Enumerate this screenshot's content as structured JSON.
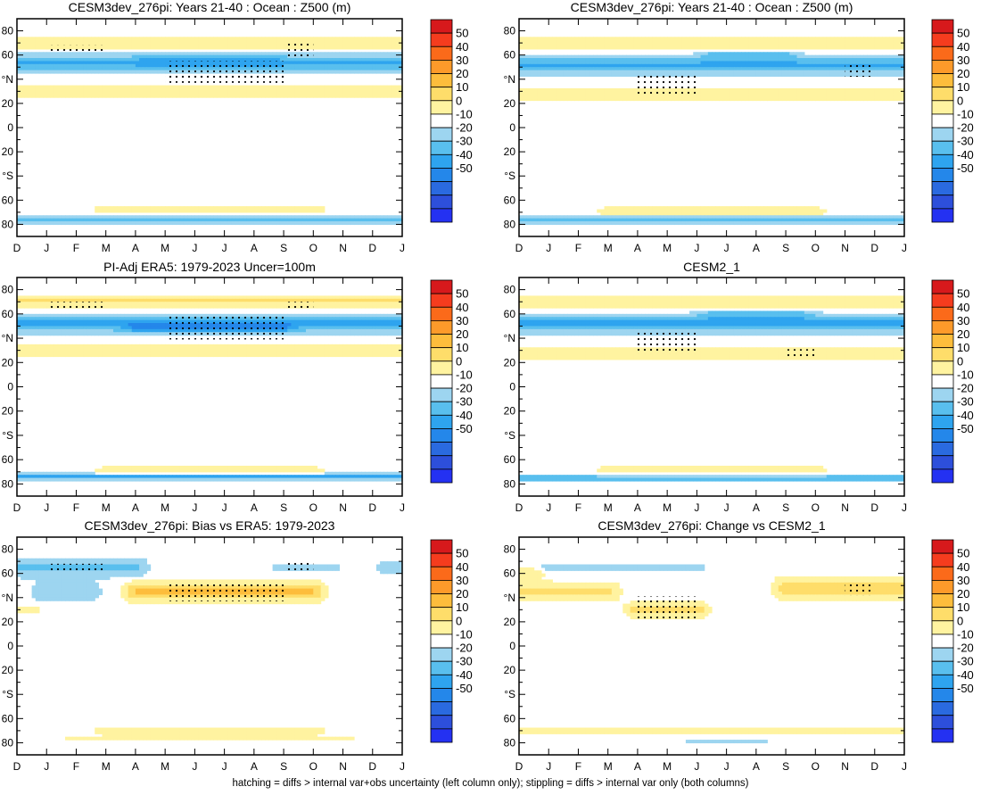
{
  "figure": {
    "caption": "hatching = diffs > internal var+obs uncertainty (left column only); stippling = diffs > internal var only (both columns)"
  },
  "palette": {
    "levels": [
      "50",
      "40",
      "30",
      "20",
      "10",
      "0",
      "-10",
      "-20",
      "-30",
      "-40",
      "-50"
    ],
    "colors": [
      "#d7191c",
      "#f53c1e",
      "#fb6a1a",
      "#fd9a2a",
      "#fdbd3c",
      "#fedd6a",
      "#fff3a0",
      "#ffffff",
      "#9dd5f0",
      "#59bfee",
      "#2ea4ef",
      "#2487ea",
      "#2a6ae0",
      "#2d4fdb",
      "#2431f2"
    ]
  },
  "chart_data": [
    {
      "type": "heatmap",
      "title": "CESM3dev_276pi: Years 21-40 : Ocean : Z500 (m)",
      "xticklabels": [
        "D",
        "J",
        "F",
        "M",
        "A",
        "M",
        "J",
        "J",
        "A",
        "S",
        "O",
        "N",
        "D",
        "J"
      ],
      "yticklabels": [
        "80",
        "60",
        "°N",
        "20",
        "0",
        "20",
        "°S",
        "60",
        "80"
      ],
      "xlim": [
        0,
        13
      ],
      "ylim": [
        -90,
        90
      ],
      "colorbar": [
        "50",
        "40",
        "30",
        "20",
        "10",
        "0",
        "-10",
        "-20",
        "-30",
        "-40",
        "-50"
      ],
      "features": [
        {
          "lat": 70,
          "x0": 0,
          "x1": 13,
          "width": 5,
          "amp": 12
        },
        {
          "lat": 53,
          "x0": 0,
          "x1": 13,
          "width": 7,
          "amp": -26
        },
        {
          "lat": 58,
          "x0": 4.5,
          "x1": 8.5,
          "width": 5,
          "amp": -12
        },
        {
          "lat": 30,
          "x0": 0,
          "x1": 13,
          "width": 5,
          "amp": 14
        },
        {
          "lat": -68,
          "x0": 3,
          "x1": 10,
          "width": 3,
          "amp": 14
        },
        {
          "lat": -76,
          "x0": 0,
          "x1": 13,
          "width": 2.5,
          "amp": -18
        }
      ],
      "stipple": [
        {
          "x0": 1,
          "x1": 3,
          "lat0": 65,
          "lat1": 65
        },
        {
          "x0": 5,
          "x1": 9,
          "lat0": 40,
          "lat1": 52
        },
        {
          "x0": 9,
          "x1": 10,
          "lat0": 62,
          "lat1": 68
        }
      ]
    },
    {
      "type": "heatmap",
      "title": "CESM3dev_276pi: Years 21-40 : Ocean : Z500 (m)",
      "xticklabels": [
        "D",
        "J",
        "F",
        "M",
        "A",
        "M",
        "J",
        "J",
        "A",
        "S",
        "O",
        "N",
        "D",
        "J"
      ],
      "yticklabels": [
        "80",
        "60",
        "°N",
        "20",
        "0",
        "20",
        "°S",
        "60",
        "80"
      ],
      "xlim": [
        0,
        13
      ],
      "ylim": [
        -90,
        90
      ],
      "colorbar": [
        "50",
        "40",
        "30",
        "20",
        "10",
        "0",
        "-10",
        "-20",
        "-30",
        "-40",
        "-50"
      ],
      "features": [
        {
          "lat": 70,
          "x0": 0,
          "x1": 13,
          "width": 5,
          "amp": 13
        },
        {
          "lat": 52,
          "x0": 0,
          "x1": 13,
          "width": 7,
          "amp": -26
        },
        {
          "lat": 60,
          "x0": 6.5,
          "x1": 9,
          "width": 4,
          "amp": -14
        },
        {
          "lat": 28,
          "x0": 0,
          "x1": 13,
          "width": 5,
          "amp": 15
        },
        {
          "lat": -69,
          "x0": 3,
          "x1": 10,
          "width": 3,
          "amp": 14
        },
        {
          "lat": -76,
          "x0": 0,
          "x1": 13,
          "width": 2.5,
          "amp": -18
        }
      ],
      "stipple": [
        {
          "x0": 4,
          "x1": 6,
          "lat0": 30,
          "lat1": 40
        },
        {
          "x0": 11,
          "x1": 12,
          "lat0": 45,
          "lat1": 50
        }
      ]
    },
    {
      "type": "heatmap",
      "title": "PI-Adj ERA5: 1979-2023 Uncer=100m",
      "xticklabels": [
        "D",
        "J",
        "F",
        "M",
        "A",
        "M",
        "J",
        "J",
        "A",
        "S",
        "O",
        "N",
        "D",
        "J"
      ],
      "yticklabels": [
        "80",
        "60",
        "°N",
        "20",
        "0",
        "20",
        "°S",
        "60",
        "80"
      ],
      "xlim": [
        0,
        13
      ],
      "ylim": [
        -90,
        90
      ],
      "colorbar": [
        "50",
        "40",
        "30",
        "20",
        "10",
        "0",
        "-10",
        "-20",
        "-30",
        "-40",
        "-50"
      ],
      "features": [
        {
          "lat": 70,
          "x0": 0,
          "x1": 13,
          "width": 5,
          "amp": 16
        },
        {
          "lat": 52,
          "x0": 0,
          "x1": 13,
          "width": 7,
          "amp": -28
        },
        {
          "lat": 48,
          "x0": 4,
          "x1": 9,
          "width": 5,
          "amp": -14
        },
        {
          "lat": 30,
          "x0": 0,
          "x1": 13,
          "width": 5,
          "amp": 15
        },
        {
          "lat": -69,
          "x0": 3,
          "x1": 10,
          "width": 3,
          "amp": 12
        },
        {
          "lat": -74,
          "x0": 0,
          "x1": 13,
          "width": 2.5,
          "amp": -30
        }
      ],
      "stipple": [
        {
          "x0": 1,
          "x1": 3,
          "lat0": 67,
          "lat1": 67
        },
        {
          "x0": 5,
          "x1": 9,
          "lat0": 42,
          "lat1": 55
        },
        {
          "x0": 9,
          "x1": 10,
          "lat0": 67,
          "lat1": 67
        }
      ]
    },
    {
      "type": "heatmap",
      "title": "CESM2_1",
      "xticklabels": [
        "D",
        "J",
        "F",
        "M",
        "A",
        "M",
        "J",
        "J",
        "A",
        "S",
        "O",
        "N",
        "D",
        "J"
      ],
      "yticklabels": [
        "80",
        "60",
        "°N",
        "20",
        "0",
        "20",
        "°S",
        "60",
        "80"
      ],
      "xlim": [
        0,
        13
      ],
      "ylim": [
        -90,
        90
      ],
      "colorbar": [
        "50",
        "40",
        "30",
        "20",
        "10",
        "0",
        "-10",
        "-20",
        "-30",
        "-40",
        "-50"
      ],
      "features": [
        {
          "lat": 70,
          "x0": 0,
          "x1": 13,
          "width": 5,
          "amp": 14
        },
        {
          "lat": 52,
          "x0": 0,
          "x1": 13,
          "width": 7,
          "amp": -28
        },
        {
          "lat": 60,
          "x0": 6.5,
          "x1": 9.5,
          "width": 4,
          "amp": -14
        },
        {
          "lat": 28,
          "x0": 0,
          "x1": 13,
          "width": 5,
          "amp": 14
        },
        {
          "lat": -68,
          "x0": 3,
          "x1": 10,
          "width": 3,
          "amp": 10
        },
        {
          "lat": -75,
          "x0": 0,
          "x1": 13,
          "width": 3,
          "amp": -18
        }
      ],
      "stipple": [
        {
          "x0": 4,
          "x1": 6,
          "lat0": 30,
          "lat1": 42
        },
        {
          "x0": 9,
          "x1": 10,
          "lat0": 28,
          "lat1": 28
        }
      ]
    },
    {
      "type": "heatmap",
      "title": "CESM3dev_276pi: Bias vs ERA5: 1979-2023",
      "xticklabels": [
        "D",
        "J",
        "F",
        "M",
        "A",
        "M",
        "J",
        "J",
        "A",
        "S",
        "O",
        "N",
        "D",
        "J"
      ],
      "yticklabels": [
        "80",
        "60",
        "°N",
        "20",
        "0",
        "20",
        "°S",
        "60",
        "80"
      ],
      "xlim": [
        0,
        13
      ],
      "ylim": [
        -90,
        90
      ],
      "colorbar": [
        "50",
        "40",
        "30",
        "20",
        "10",
        "0",
        "-10",
        "-20",
        "-30",
        "-40",
        "-50"
      ],
      "features": [
        {
          "lat": 65,
          "x0": 0,
          "x1": 4,
          "width": 8,
          "amp": -16
        },
        {
          "lat": 45,
          "x0": 0.8,
          "x1": 2.5,
          "width": 8,
          "amp": -10
        },
        {
          "lat": 65,
          "x0": 9,
          "x1": 10.5,
          "width": 4,
          "amp": -12
        },
        {
          "lat": 65,
          "x0": 12.5,
          "x1": 13,
          "width": 6,
          "amp": -12
        },
        {
          "lat": 45,
          "x0": 4,
          "x1": 10,
          "width": 8,
          "amp": 26
        },
        {
          "lat": 30,
          "x0": 0,
          "x1": 0.4,
          "width": 3,
          "amp": 12
        },
        {
          "lat": -70,
          "x0": 3,
          "x1": 10,
          "width": 3,
          "amp": 12
        },
        {
          "lat": -76,
          "x0": 2,
          "x1": 11,
          "width": 2,
          "amp": 10
        }
      ],
      "stipple": [
        {
          "x0": 1,
          "x1": 3,
          "lat0": 65,
          "lat1": 65
        },
        {
          "x0": 5,
          "x1": 9,
          "lat0": 40,
          "lat1": 50
        },
        {
          "x0": 9,
          "x1": 10,
          "lat0": 65,
          "lat1": 67
        }
      ]
    },
    {
      "type": "heatmap",
      "title": "CESM3dev_276pi: Change vs CESM2_1",
      "xticklabels": [
        "D",
        "J",
        "F",
        "M",
        "A",
        "M",
        "J",
        "J",
        "A",
        "S",
        "O",
        "N",
        "D",
        "J"
      ],
      "yticklabels": [
        "80",
        "60",
        "°N",
        "20",
        "0",
        "20",
        "°S",
        "60",
        "80"
      ],
      "xlim": [
        0,
        13
      ],
      "ylim": [
        -90,
        90
      ],
      "colorbar": [
        "50",
        "40",
        "30",
        "20",
        "10",
        "0",
        "-10",
        "-20",
        "-30",
        "-40",
        "-50"
      ],
      "features": [
        {
          "lat": 45,
          "x0": 0,
          "x1": 3,
          "width": 8,
          "amp": 16
        },
        {
          "lat": 60,
          "x0": 0,
          "x1": 0.4,
          "width": 5,
          "amp": 12
        },
        {
          "lat": 30,
          "x0": 4,
          "x1": 6,
          "width": 6,
          "amp": 20
        },
        {
          "lat": 48,
          "x0": 9,
          "x1": 13,
          "width": 9,
          "amp": 20
        },
        {
          "lat": 65,
          "x0": 1,
          "x1": 6,
          "width": 3,
          "amp": -10
        },
        {
          "lat": -70,
          "x0": 0,
          "x1": 13,
          "width": 3,
          "amp": 14
        },
        {
          "lat": -78,
          "x0": 6,
          "x1": 8,
          "width": 2,
          "amp": -10
        }
      ],
      "stipple": [
        {
          "x0": 4,
          "x1": 6,
          "lat0": 25,
          "lat1": 38
        },
        {
          "x0": 11,
          "x1": 12,
          "lat0": 45,
          "lat1": 50
        }
      ]
    }
  ]
}
